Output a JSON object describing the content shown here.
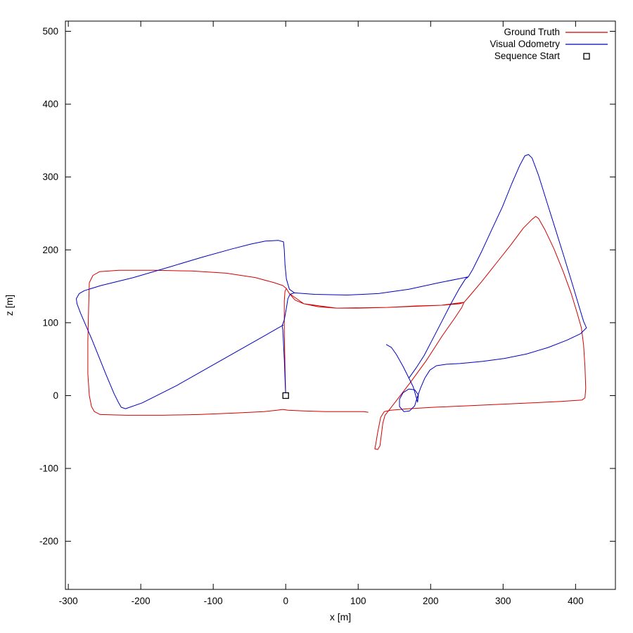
{
  "chart_data": {
    "type": "line",
    "title": "",
    "xlabel": "x [m]",
    "ylabel": "z [m]",
    "xlim": [
      -304,
      455
    ],
    "ylim": [
      -266,
      514
    ],
    "x_ticks": [
      -300,
      -200,
      -100,
      0,
      100,
      200,
      300,
      400
    ],
    "y_ticks": [
      -200,
      -100,
      0,
      100,
      200,
      300,
      400,
      500
    ],
    "grid": false,
    "legend_position": "top-right-inside",
    "border_color": "#000000",
    "background_color": "#ffffff",
    "series": [
      {
        "name": "Ground Truth",
        "color": "#d00000",
        "style": "line",
        "points": [
          [
            0,
            0
          ],
          [
            -1,
            40
          ],
          [
            -2,
            90
          ],
          [
            -2,
            130
          ],
          [
            -1,
            143
          ],
          [
            1,
            147
          ],
          [
            5,
            140
          ],
          [
            13,
            131
          ],
          [
            25,
            126
          ],
          [
            45,
            122
          ],
          [
            70,
            120
          ],
          [
            100,
            120
          ],
          [
            140,
            121
          ],
          [
            180,
            123
          ],
          [
            215,
            124
          ],
          [
            240,
            126
          ],
          [
            246,
            128
          ],
          [
            254,
            137
          ],
          [
            270,
            156
          ],
          [
            290,
            181
          ],
          [
            310,
            206
          ],
          [
            328,
            230
          ],
          [
            340,
            242
          ],
          [
            345,
            246
          ],
          [
            349,
            243
          ],
          [
            358,
            227
          ],
          [
            370,
            202
          ],
          [
            383,
            170
          ],
          [
            394,
            140
          ],
          [
            402,
            114
          ],
          [
            408,
            93
          ],
          [
            411,
            70
          ],
          [
            413,
            40
          ],
          [
            414,
            10
          ],
          [
            413,
            -3
          ],
          [
            409,
            -6
          ],
          [
            380,
            -8
          ],
          [
            340,
            -10
          ],
          [
            295,
            -12
          ],
          [
            250,
            -14
          ],
          [
            205,
            -16
          ],
          [
            170,
            -18
          ],
          [
            145,
            -20
          ],
          [
            136,
            -22
          ],
          [
            131,
            -30
          ],
          [
            127,
            -50
          ],
          [
            124,
            -68
          ],
          [
            123,
            -73
          ],
          [
            127,
            -74
          ],
          [
            130,
            -69
          ],
          [
            132,
            -54
          ],
          [
            134,
            -38
          ],
          [
            137,
            -27
          ],
          [
            152,
            -8
          ],
          [
            172,
            18
          ],
          [
            194,
            48
          ],
          [
            216,
            82
          ],
          [
            233,
            106
          ],
          [
            243,
            121
          ],
          [
            246,
            128
          ],
          [
            215,
            124
          ],
          [
            140,
            121
          ],
          [
            70,
            120
          ],
          [
            25,
            126
          ],
          [
            5,
            140
          ],
          [
            1,
            147
          ],
          [
            -4,
            151
          ],
          [
            -16,
            155
          ],
          [
            -42,
            162
          ],
          [
            -82,
            168
          ],
          [
            -130,
            171
          ],
          [
            -180,
            172
          ],
          [
            -230,
            172
          ],
          [
            -257,
            170
          ],
          [
            -266,
            165
          ],
          [
            -271,
            155
          ],
          [
            -272,
            120
          ],
          [
            -273,
            75
          ],
          [
            -273,
            30
          ],
          [
            -271,
            0
          ],
          [
            -268,
            -15
          ],
          [
            -264,
            -22
          ],
          [
            -256,
            -26
          ],
          [
            -220,
            -27
          ],
          [
            -170,
            -27
          ],
          [
            -120,
            -26
          ],
          [
            -70,
            -24
          ],
          [
            -30,
            -22
          ],
          [
            -12,
            -20
          ],
          [
            -4,
            -19
          ],
          [
            3,
            -20
          ],
          [
            25,
            -21
          ],
          [
            55,
            -22
          ],
          [
            85,
            -22
          ],
          [
            108,
            -22
          ],
          [
            114,
            -23
          ]
        ]
      },
      {
        "name": "Visual Odometry",
        "color": "#0000c0",
        "style": "line",
        "points": [
          [
            0,
            0
          ],
          [
            -2,
            50
          ],
          [
            -4,
            90
          ],
          [
            -5,
            96
          ],
          [
            -2,
            104
          ],
          [
            1,
            120
          ],
          [
            3,
            133
          ],
          [
            6,
            139
          ],
          [
            12,
            141
          ],
          [
            40,
            139
          ],
          [
            85,
            138
          ],
          [
            128,
            140
          ],
          [
            170,
            146
          ],
          [
            212,
            155
          ],
          [
            242,
            161
          ],
          [
            252,
            163
          ],
          [
            258,
            173
          ],
          [
            270,
            197
          ],
          [
            284,
            227
          ],
          [
            299,
            259
          ],
          [
            312,
            291
          ],
          [
            323,
            316
          ],
          [
            330,
            329
          ],
          [
            335,
            331
          ],
          [
            340,
            326
          ],
          [
            349,
            302
          ],
          [
            360,
            267
          ],
          [
            372,
            229
          ],
          [
            384,
            191
          ],
          [
            395,
            155
          ],
          [
            404,
            125
          ],
          [
            411,
            102
          ],
          [
            415,
            93
          ],
          [
            407,
            85
          ],
          [
            388,
            76
          ],
          [
            362,
            66
          ],
          [
            332,
            57
          ],
          [
            302,
            51
          ],
          [
            272,
            47
          ],
          [
            252,
            45
          ],
          [
            240,
            44
          ],
          [
            222,
            43
          ],
          [
            208,
            41
          ],
          [
            199,
            35
          ],
          [
            192,
            24
          ],
          [
            186,
            10
          ],
          [
            181,
            -4
          ],
          [
            178,
            -14
          ],
          [
            171,
            -21
          ],
          [
            163,
            -22
          ],
          [
            157,
            -15
          ],
          [
            157,
            -5
          ],
          [
            162,
            4
          ],
          [
            170,
            9
          ],
          [
            178,
            8
          ],
          [
            183,
            1
          ],
          [
            182,
            -9
          ],
          [
            180,
            -2
          ],
          [
            176,
            12
          ],
          [
            170,
            24
          ],
          [
            162,
            40
          ],
          [
            153,
            56
          ],
          [
            146,
            66
          ],
          [
            139,
            70
          ],
          [
            146,
            66
          ],
          [
            153,
            56
          ],
          [
            162,
            40
          ],
          [
            170,
            24
          ],
          [
            180,
            38
          ],
          [
            191,
            55
          ],
          [
            203,
            78
          ],
          [
            216,
            103
          ],
          [
            228,
            126
          ],
          [
            239,
            146
          ],
          [
            248,
            160
          ],
          [
            252,
            163
          ],
          [
            242,
            161
          ],
          [
            212,
            155
          ],
          [
            170,
            146
          ],
          [
            128,
            140
          ],
          [
            85,
            138
          ],
          [
            40,
            139
          ],
          [
            12,
            141
          ],
          [
            5,
            146
          ],
          [
            1,
            160
          ],
          [
            -1,
            180
          ],
          [
            -2,
            200
          ],
          [
            -3,
            211
          ],
          [
            -10,
            213
          ],
          [
            -28,
            212
          ],
          [
            -48,
            208
          ],
          [
            -75,
            201
          ],
          [
            -115,
            190
          ],
          [
            -162,
            176
          ],
          [
            -210,
            162
          ],
          [
            -255,
            151
          ],
          [
            -278,
            144
          ],
          [
            -285,
            140
          ],
          [
            -289,
            133
          ],
          [
            -288,
            126
          ],
          [
            -283,
            113
          ],
          [
            -267,
            76
          ],
          [
            -248,
            29
          ],
          [
            -237,
            3
          ],
          [
            -231,
            -9
          ],
          [
            -227,
            -16
          ],
          [
            -221,
            -18
          ],
          [
            -198,
            -10
          ],
          [
            -150,
            14
          ],
          [
            -95,
            45
          ],
          [
            -40,
            76
          ],
          [
            -10,
            93
          ],
          [
            -3,
            97
          ]
        ]
      },
      {
        "name": "Sequence Start",
        "color": "#000000",
        "style": "marker",
        "marker": "open-square",
        "points": [
          [
            0,
            0
          ]
        ]
      }
    ]
  }
}
